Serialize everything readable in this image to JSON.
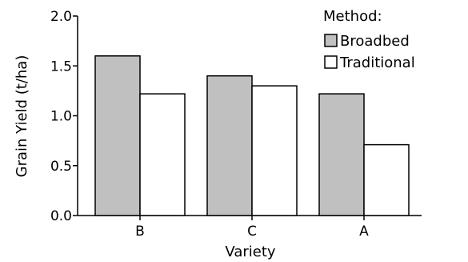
{
  "chart_data": {
    "type": "bar",
    "categories": [
      "B",
      "C",
      "A"
    ],
    "series": [
      {
        "name": "Broadbed",
        "values": [
          1.6,
          1.4,
          1.22
        ],
        "color": "#c0c0c0"
      },
      {
        "name": "Traditional",
        "values": [
          1.22,
          1.3,
          0.71
        ],
        "color": "#ffffff"
      }
    ],
    "xlabel": "Variety",
    "ylabel": "Grain Yield (t/ha)",
    "ylim": [
      0,
      2.0
    ],
    "yticks": [
      "0.0",
      "0.5",
      "1.0",
      "1.5",
      "2.0"
    ],
    "grid": false,
    "legend": {
      "title": "Method:",
      "placement": "top-right"
    }
  }
}
